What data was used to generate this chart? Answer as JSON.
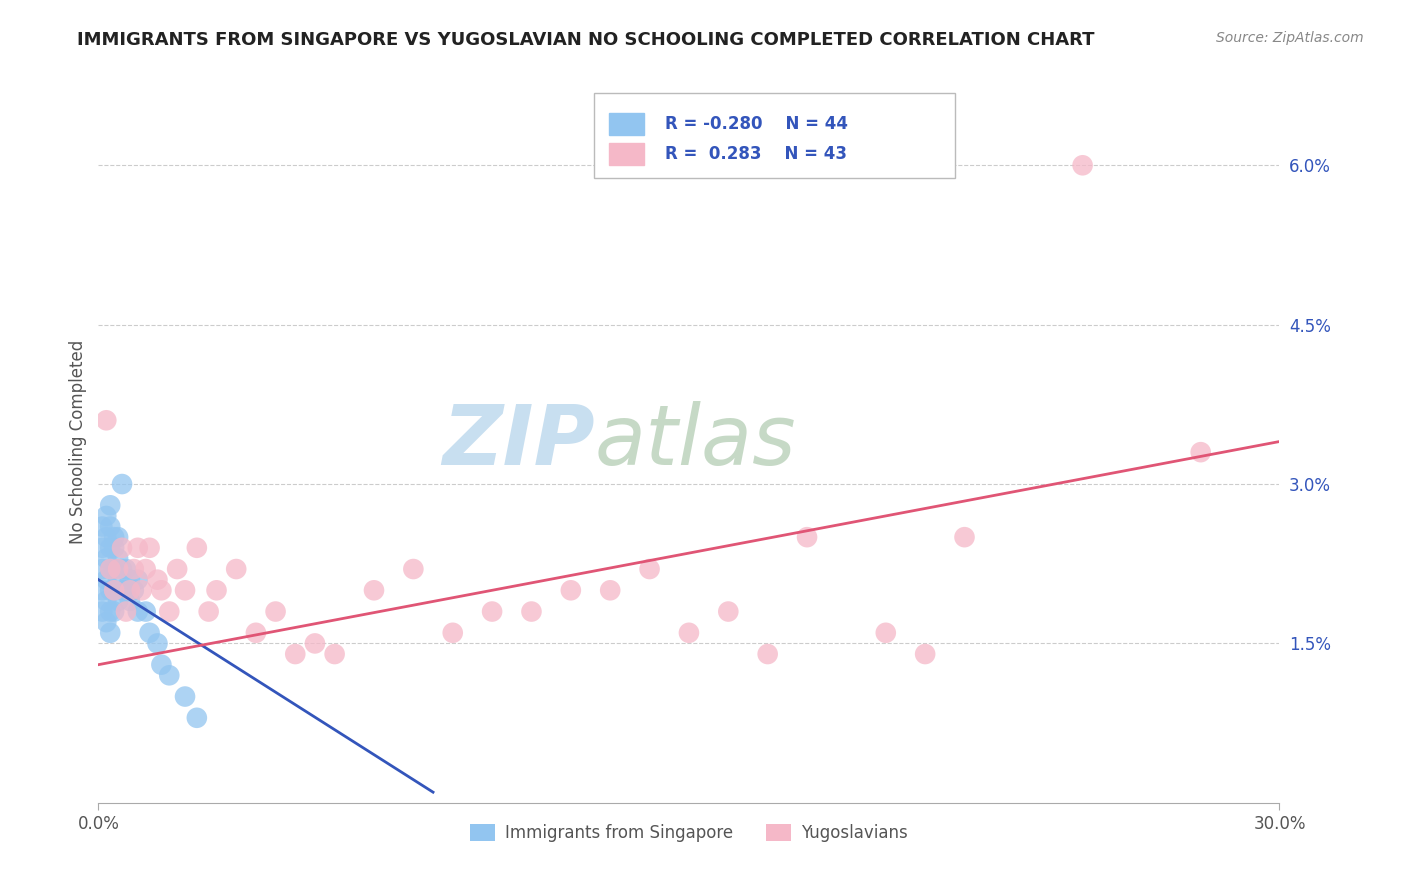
{
  "title": "IMMIGRANTS FROM SINGAPORE VS YUGOSLAVIAN NO SCHOOLING COMPLETED CORRELATION CHART",
  "source_text": "Source: ZipAtlas.com",
  "ylabel": "No Schooling Completed",
  "xmin": 0.0,
  "xmax": 0.3,
  "ymin": 0.0,
  "ymax": 0.068,
  "ytick_vals": [
    0.015,
    0.03,
    0.045,
    0.06
  ],
  "ytick_labels": [
    "1.5%",
    "3.0%",
    "4.5%",
    "6.0%"
  ],
  "color_blue": "#92C5F0",
  "color_pink": "#F5B8C8",
  "line_blue": "#3355BB",
  "line_pink": "#E05575",
  "title_color": "#222222",
  "source_color": "#888888",
  "background_color": "#FFFFFF",
  "grid_color": "#CCCCCC",
  "legend_text_color": "#3355BB",
  "blue_line_x0": 0.0,
  "blue_line_y0": 0.021,
  "blue_line_x1": 0.085,
  "blue_line_y1": 0.001,
  "pink_line_x0": 0.0,
  "pink_line_y0": 0.013,
  "pink_line_x1": 0.3,
  "pink_line_y1": 0.034,
  "blue_points_x": [
    0.001,
    0.001,
    0.001,
    0.001,
    0.001,
    0.002,
    0.002,
    0.002,
    0.002,
    0.002,
    0.002,
    0.003,
    0.003,
    0.003,
    0.003,
    0.003,
    0.003,
    0.003,
    0.004,
    0.004,
    0.004,
    0.004,
    0.004,
    0.005,
    0.005,
    0.005,
    0.005,
    0.006,
    0.006,
    0.006,
    0.007,
    0.007,
    0.008,
    0.008,
    0.009,
    0.01,
    0.01,
    0.012,
    0.013,
    0.015,
    0.016,
    0.018,
    0.022,
    0.025
  ],
  "blue_points_y": [
    0.018,
    0.02,
    0.022,
    0.024,
    0.026,
    0.017,
    0.019,
    0.021,
    0.023,
    0.025,
    0.027,
    0.016,
    0.018,
    0.02,
    0.022,
    0.024,
    0.026,
    0.028,
    0.018,
    0.02,
    0.022,
    0.024,
    0.025,
    0.019,
    0.021,
    0.023,
    0.025,
    0.02,
    0.022,
    0.03,
    0.02,
    0.022,
    0.019,
    0.021,
    0.02,
    0.018,
    0.021,
    0.018,
    0.016,
    0.015,
    0.013,
    0.012,
    0.01,
    0.008
  ],
  "pink_points_x": [
    0.002,
    0.003,
    0.004,
    0.005,
    0.006,
    0.007,
    0.008,
    0.009,
    0.01,
    0.011,
    0.012,
    0.013,
    0.015,
    0.016,
    0.018,
    0.02,
    0.022,
    0.025,
    0.028,
    0.03,
    0.035,
    0.04,
    0.045,
    0.05,
    0.055,
    0.06,
    0.07,
    0.08,
    0.09,
    0.1,
    0.11,
    0.12,
    0.13,
    0.14,
    0.15,
    0.16,
    0.17,
    0.18,
    0.2,
    0.21,
    0.22,
    0.25,
    0.28
  ],
  "pink_points_y": [
    0.036,
    0.022,
    0.02,
    0.022,
    0.024,
    0.018,
    0.02,
    0.022,
    0.024,
    0.02,
    0.022,
    0.024,
    0.021,
    0.02,
    0.018,
    0.022,
    0.02,
    0.024,
    0.018,
    0.02,
    0.022,
    0.016,
    0.018,
    0.014,
    0.015,
    0.014,
    0.02,
    0.022,
    0.016,
    0.018,
    0.018,
    0.02,
    0.02,
    0.022,
    0.016,
    0.018,
    0.014,
    0.025,
    0.016,
    0.014,
    0.025,
    0.06,
    0.033
  ],
  "bottom_legend_items": [
    "Immigrants from Singapore",
    "Yugoslavians"
  ]
}
